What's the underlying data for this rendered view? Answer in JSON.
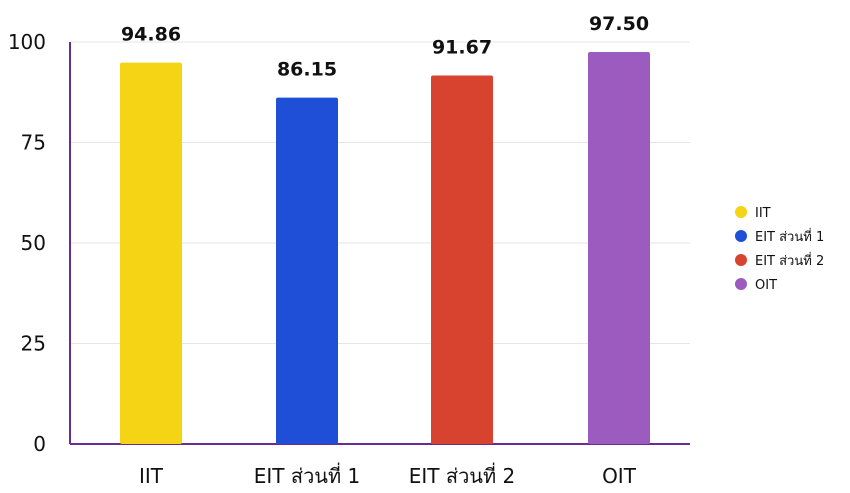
{
  "chart_data": {
    "type": "bar",
    "categories": [
      "IIT",
      "EIT ส่วนที่ 1",
      "EIT ส่วนที่ 2",
      "OIT"
    ],
    "values": [
      94.86,
      86.15,
      91.67,
      97.5
    ],
    "data_labels": [
      "94.86",
      "86.15",
      "91.67",
      "97.50"
    ],
    "colors": [
      "#f5d416",
      "#1f4fd6",
      "#d8432f",
      "#9b5bbf"
    ],
    "yticks": [
      0,
      25,
      50,
      75,
      100
    ],
    "ylim": [
      0,
      100
    ],
    "grid": true,
    "legend": {
      "placement": "right",
      "entries": [
        "IIT",
        "EIT ส่วนที่ 1",
        "EIT ส่วนที่ 2",
        "OIT"
      ]
    }
  }
}
